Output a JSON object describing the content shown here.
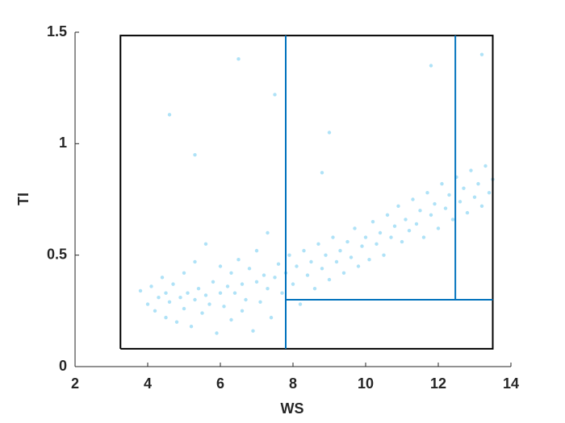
{
  "chart_data": {
    "type": "scatter",
    "xlabel": "WS",
    "ylabel": "TI",
    "color": "#4dbeee",
    "x": [
      3.8,
      4.0,
      4.1,
      4.2,
      4.3,
      4.4,
      4.5,
      4.5,
      4.6,
      4.7,
      4.8,
      4.9,
      5.0,
      5.0,
      5.1,
      5.2,
      5.3,
      5.3,
      5.4,
      5.5,
      5.6,
      5.6,
      5.7,
      5.8,
      5.9,
      6.0,
      6.0,
      6.1,
      6.2,
      6.3,
      6.3,
      6.4,
      6.5,
      6.6,
      6.6,
      6.7,
      6.8,
      6.9,
      7.0,
      7.0,
      7.1,
      7.2,
      7.3,
      7.3,
      7.4,
      7.5,
      7.6,
      7.7,
      7.8,
      7.9,
      8.0,
      8.1,
      8.2,
      8.3,
      8.4,
      8.5,
      8.6,
      8.7,
      8.8,
      8.9,
      9.0,
      9.1,
      9.2,
      9.3,
      9.4,
      9.5,
      9.6,
      9.7,
      9.8,
      9.9,
      10.0,
      10.1,
      10.2,
      10.3,
      10.4,
      10.5,
      10.6,
      10.7,
      10.8,
      10.9,
      11.0,
      11.1,
      11.2,
      11.3,
      11.4,
      11.5,
      11.6,
      11.7,
      11.8,
      11.9,
      12.0,
      12.1,
      12.2,
      12.3,
      12.4,
      12.5,
      12.6,
      12.7,
      12.8,
      12.9,
      13.0,
      13.1,
      13.2,
      13.3,
      13.4,
      13.5,
      4.6,
      6.5,
      7.5,
      9.0,
      11.8,
      13.2,
      5.3,
      8.8
    ],
    "values": [
      0.34,
      0.28,
      0.36,
      0.25,
      0.31,
      0.4,
      0.22,
      0.33,
      0.29,
      0.37,
      0.2,
      0.31,
      0.26,
      0.42,
      0.33,
      0.18,
      0.3,
      0.47,
      0.35,
      0.24,
      0.32,
      0.55,
      0.28,
      0.38,
      0.15,
      0.33,
      0.45,
      0.27,
      0.36,
      0.21,
      0.42,
      0.33,
      0.48,
      0.25,
      0.37,
      0.3,
      0.44,
      0.16,
      0.38,
      0.52,
      0.29,
      0.41,
      0.35,
      0.6,
      0.22,
      0.4,
      0.46,
      0.33,
      0.42,
      0.5,
      0.37,
      0.45,
      0.28,
      0.52,
      0.41,
      0.47,
      0.35,
      0.55,
      0.44,
      0.5,
      0.39,
      0.58,
      0.47,
      0.52,
      0.42,
      0.56,
      0.49,
      0.62,
      0.45,
      0.54,
      0.58,
      0.48,
      0.65,
      0.55,
      0.6,
      0.5,
      0.68,
      0.58,
      0.63,
      0.72,
      0.56,
      0.66,
      0.61,
      0.75,
      0.64,
      0.7,
      0.58,
      0.78,
      0.68,
      0.73,
      0.62,
      0.82,
      0.71,
      0.77,
      0.66,
      0.85,
      0.74,
      0.8,
      0.69,
      0.88,
      0.76,
      0.82,
      0.72,
      0.9,
      0.78,
      0.84,
      1.13,
      1.38,
      1.22,
      1.05,
      1.35,
      1.4,
      0.95,
      0.87
    ],
    "regions": [
      {
        "color": "#000000",
        "x": [
          3.25,
          13.5,
          13.5,
          3.25,
          3.25
        ],
        "y": [
          0.08,
          0.08,
          1.485,
          1.485,
          0.08
        ]
      },
      {
        "color": "#0072bd",
        "x": [
          7.8,
          7.8
        ],
        "y": [
          0.08,
          1.485
        ]
      },
      {
        "color": "#0072bd",
        "x": [
          12.47,
          12.47
        ],
        "y": [
          0.3,
          1.485
        ]
      },
      {
        "color": "#0072bd",
        "x": [
          7.8,
          13.5
        ],
        "y": [
          0.3,
          0.3
        ]
      }
    ],
    "xlim": [
      2,
      14
    ],
    "xticks": [
      2,
      4,
      6,
      8,
      10,
      12,
      14
    ],
    "ylim": [
      0,
      1.5
    ],
    "yticks": [
      0,
      0.5,
      1,
      1.5
    ]
  }
}
